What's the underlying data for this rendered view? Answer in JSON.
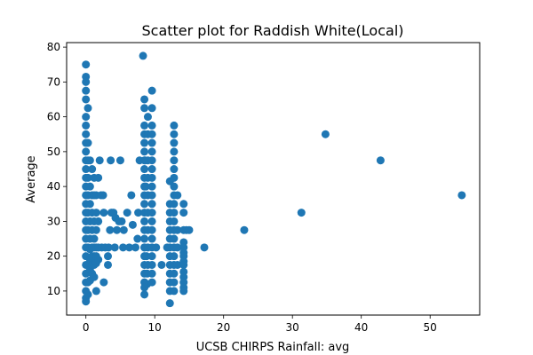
{
  "chart_data": {
    "type": "scatter",
    "title": "Scatter plot for Raddish White(Local)",
    "xlabel": "UCSB CHIRPS Rainfall: avg",
    "ylabel": "Average",
    "xlim": [
      -2.8,
      57.2
    ],
    "ylim": [
      3.1,
      81.3
    ],
    "xticks": [
      0,
      10,
      20,
      30,
      40,
      50
    ],
    "yticks": [
      10,
      20,
      30,
      40,
      50,
      60,
      70,
      80
    ],
    "grid": false,
    "marker_color": "#1f77b4",
    "points": [
      [
        0,
        75
      ],
      [
        0,
        71.5
      ],
      [
        0,
        70
      ],
      [
        0,
        67.5
      ],
      [
        0,
        65
      ],
      [
        0,
        60
      ],
      [
        0,
        57.5
      ],
      [
        0,
        55
      ],
      [
        0,
        52.5
      ],
      [
        0,
        50
      ],
      [
        0,
        47.5
      ],
      [
        0,
        45
      ],
      [
        0,
        42.5
      ],
      [
        0,
        40
      ],
      [
        0,
        37.5
      ],
      [
        0,
        35
      ],
      [
        0,
        32.5
      ],
      [
        0,
        30
      ],
      [
        0,
        27.5
      ],
      [
        0,
        25
      ],
      [
        0,
        22.5
      ],
      [
        0,
        20
      ],
      [
        0,
        17.5
      ],
      [
        0,
        15
      ],
      [
        0,
        12.5
      ],
      [
        0,
        10
      ],
      [
        0,
        8
      ],
      [
        0,
        7
      ],
      [
        0.3,
        62.5
      ],
      [
        0.3,
        52.5
      ],
      [
        0.3,
        47.5
      ],
      [
        0.3,
        42.5
      ],
      [
        0.3,
        37.5
      ],
      [
        0.3,
        32.5
      ],
      [
        0.3,
        27.5
      ],
      [
        0.3,
        22.5
      ],
      [
        0.3,
        17.5
      ],
      [
        0.3,
        12.5
      ],
      [
        0.3,
        9
      ],
      [
        0.6,
        47.5
      ],
      [
        0.6,
        40
      ],
      [
        0.6,
        35
      ],
      [
        0.6,
        30
      ],
      [
        0.6,
        25
      ],
      [
        0.6,
        22
      ],
      [
        0.6,
        19
      ],
      [
        0.6,
        16
      ],
      [
        0.6,
        13
      ],
      [
        0.9,
        45
      ],
      [
        0.9,
        37.5
      ],
      [
        0.9,
        32.5
      ],
      [
        0.9,
        27.5
      ],
      [
        0.9,
        22.5
      ],
      [
        0.9,
        20
      ],
      [
        0.9,
        17.5
      ],
      [
        0.9,
        15
      ],
      [
        1.2,
        42.5
      ],
      [
        1.2,
        37.5
      ],
      [
        1.2,
        30
      ],
      [
        1.2,
        25
      ],
      [
        1.2,
        22.5
      ],
      [
        1.2,
        20
      ],
      [
        1.2,
        17.5
      ],
      [
        1.2,
        14
      ],
      [
        1.5,
        37.5
      ],
      [
        1.5,
        32.5
      ],
      [
        1.5,
        27.5
      ],
      [
        1.5,
        22.5
      ],
      [
        1.5,
        20
      ],
      [
        1.5,
        18
      ],
      [
        1.5,
        10
      ],
      [
        1.8,
        42.5
      ],
      [
        1.8,
        30
      ],
      [
        1.8,
        22.5
      ],
      [
        1.8,
        19
      ],
      [
        2.0,
        47.5
      ],
      [
        2.2,
        37.5
      ],
      [
        2.5,
        37.5
      ],
      [
        2.3,
        22.5
      ],
      [
        2.6,
        32.5
      ],
      [
        2.6,
        12.5
      ],
      [
        2.8,
        22.5
      ],
      [
        3.2,
        20
      ],
      [
        3.2,
        17.5
      ],
      [
        3.3,
        22.5
      ],
      [
        3.5,
        27.5
      ],
      [
        3.6,
        47.5
      ],
      [
        3.7,
        32.5
      ],
      [
        4.0,
        32.5
      ],
      [
        4.2,
        22.5
      ],
      [
        4.3,
        31
      ],
      [
        4.5,
        27.5
      ],
      [
        4.8,
        30
      ],
      [
        5.0,
        47.5
      ],
      [
        5.2,
        30
      ],
      [
        5.4,
        22.5
      ],
      [
        5.5,
        27.5
      ],
      [
        6.0,
        32.5
      ],
      [
        6.3,
        22.5
      ],
      [
        6.6,
        37.5
      ],
      [
        6.8,
        29
      ],
      [
        7.2,
        22.5
      ],
      [
        7.5,
        25
      ],
      [
        7.6,
        32.5
      ],
      [
        7.8,
        47.5
      ],
      [
        8.3,
        77.5
      ],
      [
        8.5,
        22.5
      ],
      [
        8.6,
        47.5
      ],
      [
        8.7,
        40
      ],
      [
        8.8,
        20
      ],
      [
        8.9,
        15
      ],
      [
        8.9,
        12
      ],
      [
        8.5,
        65
      ],
      [
        8.5,
        62.5
      ],
      [
        8.5,
        57.5
      ],
      [
        8.5,
        55
      ],
      [
        8.5,
        52.5
      ],
      [
        8.5,
        50
      ],
      [
        8.5,
        47.5
      ],
      [
        8.5,
        45
      ],
      [
        8.5,
        42.5
      ],
      [
        8.5,
        40
      ],
      [
        8.5,
        37.5
      ],
      [
        8.5,
        35
      ],
      [
        8.5,
        32.5
      ],
      [
        8.5,
        30
      ],
      [
        8.5,
        27.5
      ],
      [
        8.5,
        25
      ],
      [
        8.5,
        22.5
      ],
      [
        8.5,
        20
      ],
      [
        8.5,
        17.5
      ],
      [
        8.5,
        15
      ],
      [
        8.5,
        12.5
      ],
      [
        8.5,
        11
      ],
      [
        8.5,
        9
      ],
      [
        9.0,
        60
      ],
      [
        9.0,
        55
      ],
      [
        9.0,
        47.5
      ],
      [
        9.0,
        42.5
      ],
      [
        9.0,
        37.5
      ],
      [
        9.0,
        32.5
      ],
      [
        9.0,
        27.5
      ],
      [
        9.0,
        22.5
      ],
      [
        9.0,
        17.5
      ],
      [
        9.6,
        67.5
      ],
      [
        9.6,
        62.5
      ],
      [
        9.6,
        57.5
      ],
      [
        9.6,
        55
      ],
      [
        9.6,
        52.5
      ],
      [
        9.6,
        50
      ],
      [
        9.6,
        47.5
      ],
      [
        9.6,
        45
      ],
      [
        9.6,
        42.5
      ],
      [
        9.6,
        40
      ],
      [
        9.6,
        37.5
      ],
      [
        9.6,
        35
      ],
      [
        9.6,
        32.5
      ],
      [
        9.6,
        30
      ],
      [
        9.6,
        27.5
      ],
      [
        9.6,
        25
      ],
      [
        9.6,
        22.5
      ],
      [
        9.6,
        20
      ],
      [
        9.6,
        17.5
      ],
      [
        9.6,
        15
      ],
      [
        9.6,
        12.5
      ],
      [
        10.2,
        22.5
      ],
      [
        11.0,
        17.5
      ],
      [
        11.8,
        22.5
      ],
      [
        12.2,
        41.5
      ],
      [
        12.2,
        35
      ],
      [
        12.2,
        32.5
      ],
      [
        12.2,
        30
      ],
      [
        12.2,
        27.5
      ],
      [
        12.2,
        25
      ],
      [
        12.2,
        22.5
      ],
      [
        12.2,
        20
      ],
      [
        12.2,
        17.5
      ],
      [
        12.2,
        15
      ],
      [
        12.2,
        12.5
      ],
      [
        12.2,
        10
      ],
      [
        12.2,
        6.5
      ],
      [
        12.8,
        57.5
      ],
      [
        12.8,
        55
      ],
      [
        12.8,
        52.5
      ],
      [
        12.8,
        50
      ],
      [
        12.8,
        47.5
      ],
      [
        12.8,
        45
      ],
      [
        12.8,
        42.5
      ],
      [
        12.8,
        40
      ],
      [
        12.8,
        37.5
      ],
      [
        12.8,
        35
      ],
      [
        12.8,
        32.5
      ],
      [
        12.8,
        30
      ],
      [
        12.8,
        27.5
      ],
      [
        12.8,
        25
      ],
      [
        12.8,
        22.5
      ],
      [
        12.8,
        20
      ],
      [
        12.8,
        17.5
      ],
      [
        12.8,
        15
      ],
      [
        12.8,
        12.5
      ],
      [
        12.8,
        10
      ],
      [
        13.3,
        37.5
      ],
      [
        13.3,
        27.5
      ],
      [
        13.3,
        22.5
      ],
      [
        13.3,
        17.5
      ],
      [
        14.2,
        35
      ],
      [
        14.2,
        32.5
      ],
      [
        14.2,
        27.5
      ],
      [
        14.2,
        24
      ],
      [
        14.2,
        22.5
      ],
      [
        14.2,
        21
      ],
      [
        14.2,
        20
      ],
      [
        14.2,
        18.5
      ],
      [
        14.2,
        17.5
      ],
      [
        14.2,
        15.5
      ],
      [
        14.2,
        14
      ],
      [
        14.2,
        12.5
      ],
      [
        14.2,
        11
      ],
      [
        14.2,
        10
      ],
      [
        14.6,
        27.5
      ],
      [
        15.0,
        27.5
      ],
      [
        17.2,
        22.5
      ],
      [
        23.0,
        27.5
      ],
      [
        31.3,
        32.5
      ],
      [
        34.8,
        55
      ],
      [
        42.8,
        47.5
      ],
      [
        54.6,
        37.5
      ]
    ]
  }
}
